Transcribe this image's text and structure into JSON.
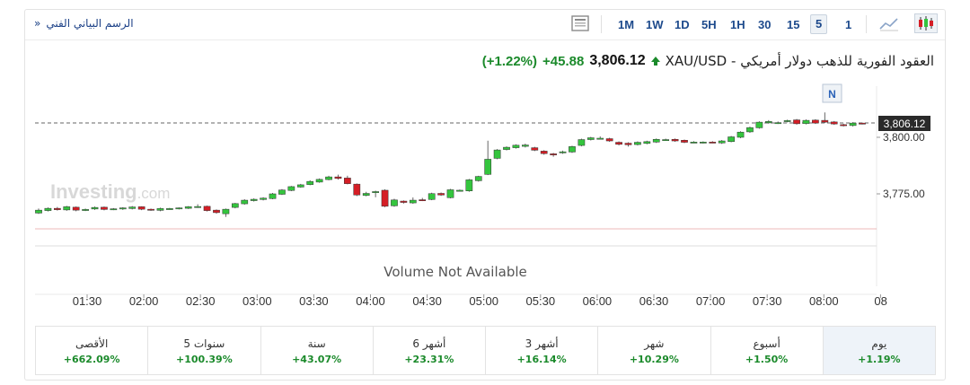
{
  "toolbar": {
    "technical_chart_link": "الرسم البياني الفني",
    "link_arrow": "»",
    "timeframes": [
      "1M",
      "1W",
      "1D",
      "5H",
      "1H",
      "30",
      "15",
      "5",
      "1"
    ],
    "active_timeframe": "5",
    "icons": [
      "table-icon",
      "area-chart-icon",
      "candlestick-icon"
    ]
  },
  "header": {
    "instrument_name": "XAU/USD - العقود الفورية للذهب دولار أمريكي",
    "price": "3,806.12",
    "change": "+45.88",
    "change_pct": "(+1.22%)",
    "direction_icon": "up-arrow-icon"
  },
  "colors": {
    "up": "#34c53e",
    "down": "#d51e26",
    "positive_text": "#1b8a2b",
    "accent": "#1d4a8c"
  },
  "chart_data": {
    "type": "candlestick",
    "y_ticks": [
      "3,800.00",
      "3,775.00"
    ],
    "y_tick_values": [
      3800,
      3775
    ],
    "last_price_label": "3,806.12",
    "last_price": 3806.12,
    "x_ticks": [
      "01:30",
      "02:00",
      "02:30",
      "03:00",
      "03:30",
      "04:00",
      "04:30",
      "05:00",
      "05:30",
      "06:00",
      "06:30",
      "07:00",
      "07:30",
      "08:00",
      "08"
    ],
    "marker_label": "N",
    "volume_text": "Volume Not Available",
    "watermark": "Investing.com",
    "candles": [
      [
        3766.5,
        3767.8,
        3766.1,
        3768.5
      ],
      [
        3767.6,
        3768.6,
        3767.2,
        3769.0
      ],
      [
        3768.6,
        3768.0,
        3767.6,
        3769.2
      ],
      [
        3767.9,
        3769.3,
        3767.5,
        3769.7
      ],
      [
        3769.1,
        3767.8,
        3767.3,
        3769.4
      ],
      [
        3767.7,
        3768.1,
        3767.4,
        3768.5
      ],
      [
        3768.3,
        3769.0,
        3767.9,
        3769.4
      ],
      [
        3769.1,
        3768.1,
        3767.7,
        3769.4
      ],
      [
        3768.2,
        3768.4,
        3767.8,
        3768.7
      ],
      [
        3768.3,
        3768.8,
        3767.9,
        3769.1
      ],
      [
        3768.5,
        3769.2,
        3768.1,
        3769.6
      ],
      [
        3769.3,
        3768.2,
        3767.8,
        3769.5
      ],
      [
        3768.2,
        3767.9,
        3767.5,
        3768.5
      ],
      [
        3767.7,
        3768.5,
        3767.3,
        3768.9
      ],
      [
        3768.4,
        3768.5,
        3768.0,
        3768.8
      ],
      [
        3768.5,
        3768.8,
        3768.1,
        3769.0
      ],
      [
        3768.6,
        3769.3,
        3768.3,
        3769.6
      ],
      [
        3769.2,
        3769.4,
        3768.8,
        3770.4
      ],
      [
        3769.5,
        3767.6,
        3767.2,
        3769.8
      ],
      [
        3767.8,
        3766.7,
        3766.2,
        3768.1
      ],
      [
        3766.2,
        3768.2,
        3764.8,
        3768.5
      ],
      [
        3769.0,
        3770.7,
        3768.6,
        3771.0
      ],
      [
        3770.6,
        3772.2,
        3770.2,
        3772.6
      ],
      [
        3772.0,
        3772.6,
        3771.6,
        3773.0
      ],
      [
        3772.5,
        3773.1,
        3772.1,
        3773.5
      ],
      [
        3772.9,
        3775.0,
        3772.6,
        3775.4
      ],
      [
        3774.8,
        3776.7,
        3774.5,
        3777.1
      ],
      [
        3776.5,
        3778.2,
        3776.2,
        3778.5
      ],
      [
        3778.0,
        3779.0,
        3777.7,
        3779.4
      ],
      [
        3779.1,
        3780.5,
        3778.8,
        3781.0
      ],
      [
        3780.2,
        3781.4,
        3779.9,
        3781.8
      ],
      [
        3781.3,
        3782.5,
        3781.0,
        3783.0
      ],
      [
        3782.5,
        3781.8,
        3781.3,
        3783.5
      ],
      [
        3782.0,
        3779.5,
        3779.2,
        3783.0
      ],
      [
        3779.3,
        3774.5,
        3774.0,
        3779.6
      ],
      [
        3774.3,
        3775.2,
        3773.9,
        3775.9
      ],
      [
        3775.6,
        3776.0,
        3773.5,
        3776.4
      ],
      [
        3776.6,
        3769.5,
        3769.1,
        3777.0
      ],
      [
        3769.7,
        3772.3,
        3769.3,
        3772.8
      ],
      [
        3771.8,
        3771.2,
        3770.7,
        3772.1
      ],
      [
        3771.0,
        3772.2,
        3770.6,
        3773.4
      ],
      [
        3772.4,
        3772.2,
        3771.8,
        3773.2
      ],
      [
        3772.5,
        3775.1,
        3772.2,
        3775.5
      ],
      [
        3775.2,
        3774.5,
        3774.1,
        3775.6
      ],
      [
        3773.3,
        3776.8,
        3773.0,
        3777.2
      ],
      [
        3776.4,
        3776.6,
        3776.1,
        3776.9
      ],
      [
        3776.3,
        3781.2,
        3775.9,
        3781.6
      ],
      [
        3780.8,
        3782.7,
        3780.4,
        3783.0
      ],
      [
        3783.6,
        3790.3,
        3783.3,
        3798.5
      ],
      [
        3790.7,
        3794.4,
        3790.3,
        3794.8
      ],
      [
        3794.6,
        3795.6,
        3794.2,
        3796.0
      ],
      [
        3795.4,
        3796.5,
        3795.0,
        3796.9
      ],
      [
        3796.0,
        3796.6,
        3795.5,
        3797.2
      ],
      [
        3795.4,
        3794.3,
        3793.9,
        3795.8
      ],
      [
        3793.9,
        3792.8,
        3792.3,
        3794.3
      ],
      [
        3792.7,
        3792.2,
        3791.4,
        3793.1
      ],
      [
        3793.1,
        3793.6,
        3792.7,
        3794.1
      ],
      [
        3793.5,
        3795.9,
        3793.1,
        3796.3
      ],
      [
        3796.4,
        3799.0,
        3796.0,
        3799.4
      ],
      [
        3799.0,
        3799.8,
        3798.6,
        3800.2
      ],
      [
        3799.6,
        3799.6,
        3799.2,
        3800.4
      ],
      [
        3799.4,
        3798.4,
        3798.0,
        3799.8
      ],
      [
        3797.8,
        3796.9,
        3796.4,
        3798.2
      ],
      [
        3797.4,
        3796.7,
        3795.9,
        3797.8
      ],
      [
        3796.8,
        3797.8,
        3796.4,
        3798.2
      ],
      [
        3797.3,
        3798.1,
        3796.9,
        3798.5
      ],
      [
        3797.9,
        3799.1,
        3797.5,
        3799.5
      ],
      [
        3799.0,
        3799.0,
        3798.6,
        3799.4
      ],
      [
        3799.1,
        3798.4,
        3798.0,
        3799.5
      ],
      [
        3798.7,
        3797.8,
        3797.4,
        3799.0
      ],
      [
        3797.8,
        3797.9,
        3797.4,
        3798.3
      ],
      [
        3797.7,
        3797.9,
        3797.3,
        3798.2
      ],
      [
        3797.9,
        3797.8,
        3797.4,
        3798.3
      ],
      [
        3797.5,
        3798.4,
        3797.1,
        3798.8
      ],
      [
        3798.1,
        3800.2,
        3797.8,
        3800.6
      ],
      [
        3800.0,
        3802.3,
        3799.6,
        3802.7
      ],
      [
        3802.4,
        3804.3,
        3802.0,
        3804.7
      ],
      [
        3804.2,
        3806.7,
        3803.8,
        3807.1
      ],
      [
        3806.4,
        3807.0,
        3806.0,
        3807.6
      ],
      [
        3806.3,
        3806.5,
        3805.9,
        3807.0
      ],
      [
        3807.0,
        3807.4,
        3806.6,
        3807.8
      ],
      [
        3807.7,
        3806.0,
        3805.6,
        3808.1
      ],
      [
        3806.1,
        3807.5,
        3805.7,
        3807.9
      ],
      [
        3807.6,
        3806.3,
        3805.9,
        3808.0
      ],
      [
        3807.5,
        3806.7,
        3806.3,
        3811.0
      ],
      [
        3806.8,
        3805.9,
        3805.5,
        3807.2
      ],
      [
        3805.6,
        3805.2,
        3804.8,
        3806.0
      ],
      [
        3805.2,
        3806.3,
        3804.8,
        3806.7
      ],
      [
        3806.3,
        3806.1,
        3805.7,
        3806.5
      ]
    ]
  },
  "performance": [
    {
      "label": "يوم",
      "value": "+1.19%"
    },
    {
      "label": "أسبوع",
      "value": "+1.50%"
    },
    {
      "label": "شهر",
      "value": "+10.29%"
    },
    {
      "label": "3 أشهر",
      "value": "+16.14%"
    },
    {
      "label": "6 أشهر",
      "value": "+23.31%"
    },
    {
      "label": "سنة",
      "value": "+43.07%"
    },
    {
      "label": "5 سنوات",
      "value": "+100.39%"
    },
    {
      "label": "الأقصى",
      "value": "+662.09%"
    }
  ]
}
